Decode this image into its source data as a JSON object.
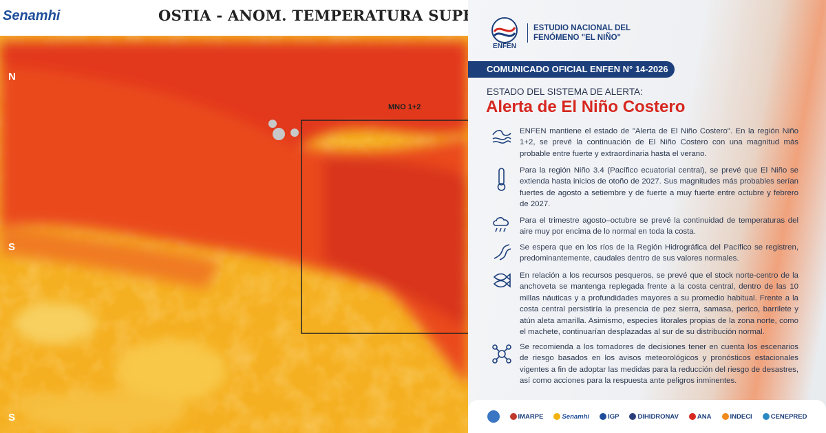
{
  "map": {
    "brand": "Senamhi",
    "title": "OSTIA - ANOM. TEMPERATURA SUPERF",
    "box_label": "MNO 1+2",
    "lat_labels": [
      "N",
      "S",
      "S"
    ]
  },
  "document": {
    "logo": "ENFEN",
    "organization": "ESTUDIO NACIONAL DEL FENÓMENO \"EL NIÑO\"",
    "banner": "COMUNICADO OFICIAL ENFEN N° 14-2026",
    "subtitle": "ESTADO DEL SISTEMA DE ALERTA:",
    "headline": "Alerta de El Niño Costero",
    "items": [
      "ENFEN mantiene el estado de \"Alerta de El Niño Costero\". En la región Niño 1+2, se prevé la continuación de El Niño Costero con una magnitud más probable entre fuerte y extraordinaria hasta el verano.",
      "Para la región Niño 3.4 (Pacífico ecuatorial central), se prevé que El Niño se extienda hasta inicios de otoño de 2027. Sus magnitudes más probables serían fuertes de agosto a setiembre y de fuerte a muy fuerte entre octubre y febrero de 2027.",
      "Para el trimestre agosto–octubre se prevé la continuidad de temperaturas del aire muy por encima de lo normal en toda la costa.",
      "Se espera que en los ríos de la Región Hidrográfica del Pacífico se registren, predominantemente, caudales dentro de sus valores normales.",
      "En relación a los recursos pesqueros, se prevé que el stock norte-centro de la anchoveta se mantenga replegada frente a la costa central, dentro de las 10 millas náuticas y a profundidades mayores a su promedio habitual. Frente a la costa central persistiría la presencia de pez sierra, samasa, perico, barrilete y atún aleta amarilla. Asimismo, especies litorales propias de la zona norte, como el machete, continuarían desplazadas al sur de su distribución normal.",
      "Se recomienda a los tomadores de decisiones tener en cuenta los escenarios de riesgo basados en los avisos meteorológicos y pronósticos estacionales vigentes a fin de adoptar las medidas para la reducción del riesgo de desastres, así como acciones para la respuesta ante peligros inminentes."
    ],
    "partners": [
      "IMARPE",
      "Senamhi",
      "IGP",
      "DIHIDRONAV",
      "ANA",
      "INDECI",
      "CENEPRED"
    ]
  }
}
